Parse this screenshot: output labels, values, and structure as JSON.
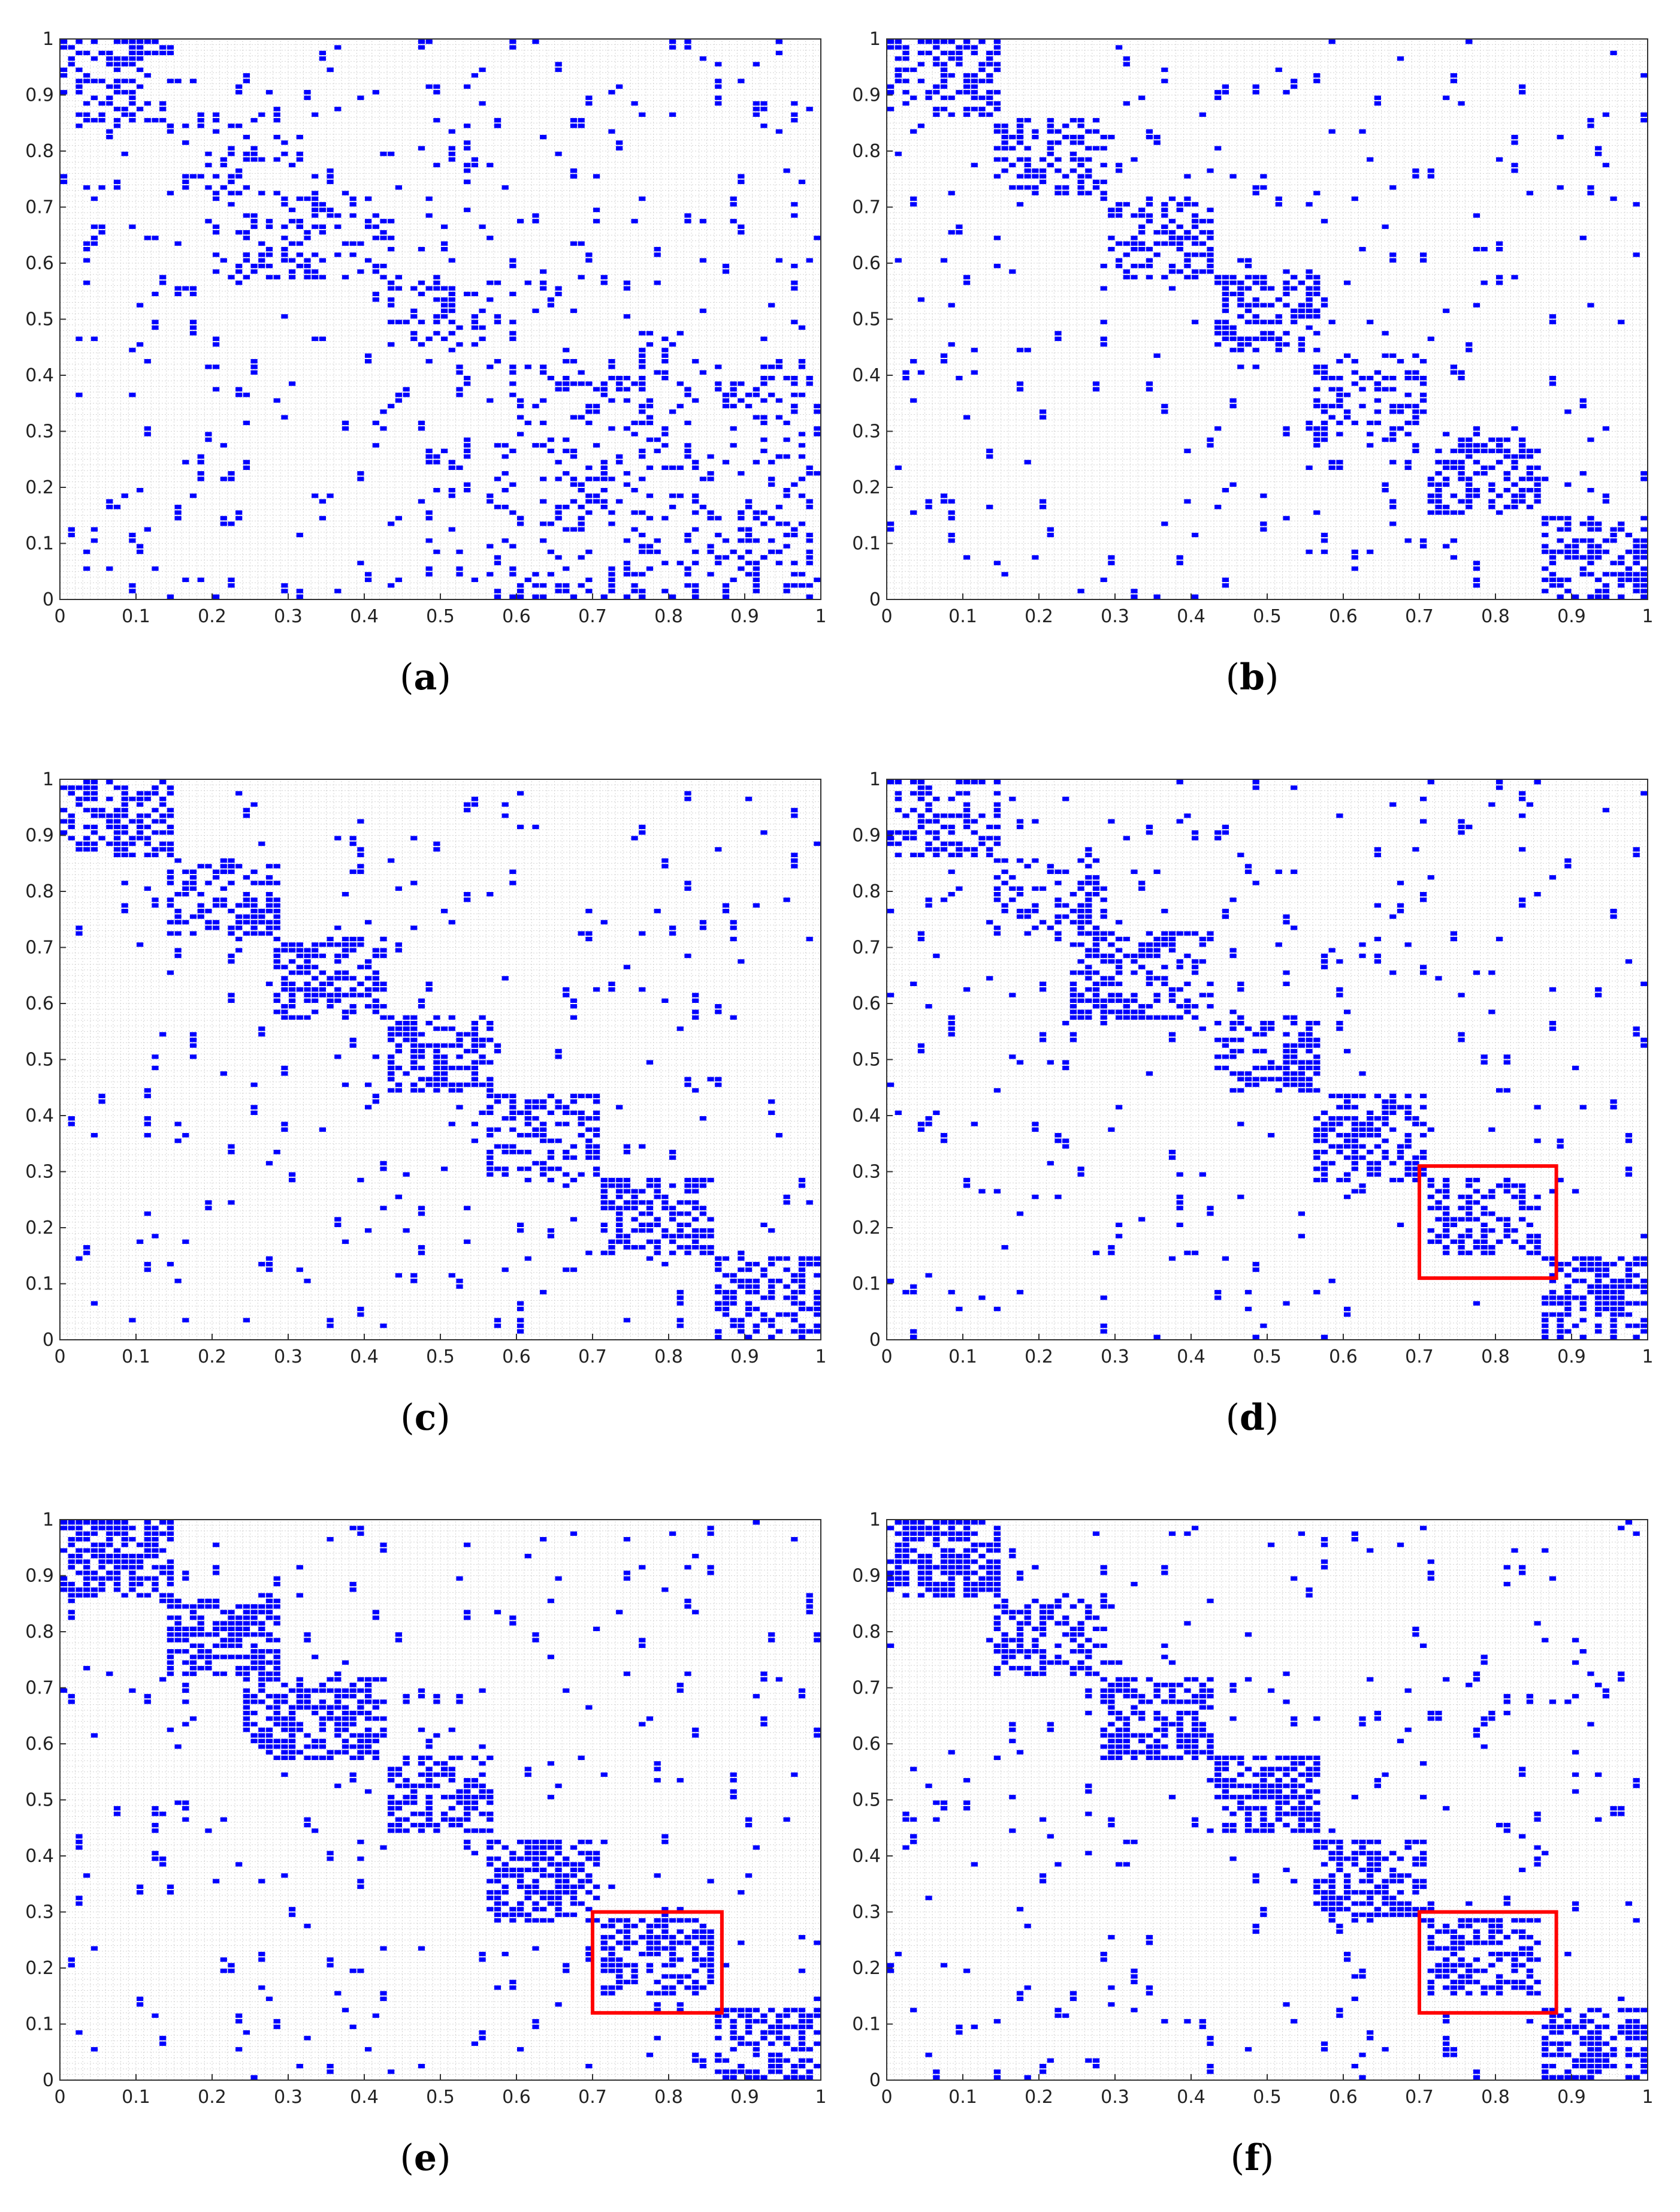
{
  "charts": [
    {
      "label": "a",
      "highlight": null,
      "chart_data": {
        "type": "scatter",
        "x_ticks": [
          "0",
          "0.1",
          "0.2",
          "0.3",
          "0.4",
          "0.5",
          "0.6",
          "0.7",
          "0.8",
          "0.9",
          "1"
        ],
        "y_ticks": [
          "0",
          "0.1",
          "0.2",
          "0.3",
          "0.4",
          "0.5",
          "0.6",
          "0.7",
          "0.8",
          "0.9",
          "1"
        ],
        "xlim": [
          0,
          1
        ],
        "ylim": [
          0,
          1
        ],
        "grid": true,
        "marker_color": "#0000ff",
        "clusters": [
          [
            0.0,
            0.15,
            0.85,
            1.0,
            0.35
          ],
          [
            0.15,
            0.3,
            0.72,
            0.87,
            0.18
          ],
          [
            0.2,
            0.43,
            0.58,
            0.73,
            0.25
          ],
          [
            0.43,
            0.57,
            0.44,
            0.58,
            0.25
          ],
          [
            0.57,
            1.0,
            0.0,
            0.43,
            0.16
          ]
        ]
      }
    },
    {
      "label": "b",
      "highlight": null,
      "chart_data": {
        "type": "scatter",
        "x_ticks": [
          "0",
          "0.1",
          "0.2",
          "0.3",
          "0.4",
          "0.5",
          "0.6",
          "0.7",
          "0.8",
          "0.9",
          "1"
        ],
        "y_ticks": [
          "0",
          "0.1",
          "0.2",
          "0.3",
          "0.4",
          "0.5",
          "0.6",
          "0.7",
          "0.8",
          "0.9",
          "1"
        ],
        "xlim": [
          0,
          1
        ],
        "ylim": [
          0,
          1
        ],
        "grid": true,
        "marker_color": "#0000ff",
        "clusters": [
          [
            0.0,
            0.14,
            0.86,
            1.0,
            0.45
          ],
          [
            0.14,
            0.28,
            0.72,
            0.86,
            0.32
          ],
          [
            0.28,
            0.43,
            0.58,
            0.72,
            0.45
          ],
          [
            0.43,
            0.57,
            0.44,
            0.58,
            0.45
          ],
          [
            0.57,
            0.71,
            0.29,
            0.44,
            0.4
          ],
          [
            0.71,
            0.86,
            0.15,
            0.29,
            0.5
          ],
          [
            0.86,
            1.0,
            0.0,
            0.14,
            0.45
          ]
        ]
      }
    },
    {
      "label": "c",
      "highlight": null,
      "chart_data": {
        "type": "scatter",
        "x_ticks": [
          "0",
          "0.1",
          "0.2",
          "0.3",
          "0.4",
          "0.5",
          "0.6",
          "0.7",
          "0.8",
          "0.9",
          "1"
        ],
        "y_ticks": [
          "0",
          "0.1",
          "0.2",
          "0.3",
          "0.4",
          "0.5",
          "0.6",
          "0.7",
          "0.8",
          "0.9",
          "1"
        ],
        "xlim": [
          0,
          1
        ],
        "ylim": [
          0,
          1
        ],
        "grid": true,
        "marker_color": "#0000ff",
        "clusters": [
          [
            0.0,
            0.14,
            0.86,
            1.0,
            0.5
          ],
          [
            0.14,
            0.28,
            0.72,
            0.86,
            0.4
          ],
          [
            0.28,
            0.43,
            0.58,
            0.72,
            0.55
          ],
          [
            0.43,
            0.57,
            0.44,
            0.58,
            0.55
          ],
          [
            0.57,
            0.71,
            0.29,
            0.44,
            0.45
          ],
          [
            0.71,
            0.86,
            0.15,
            0.29,
            0.5
          ],
          [
            0.86,
            1.0,
            0.0,
            0.14,
            0.5
          ]
        ]
      }
    },
    {
      "label": "d",
      "highlight": [
        0.7,
        0.88,
        0.11,
        0.31
      ],
      "chart_data": {
        "type": "scatter",
        "x_ticks": [
          "0",
          "0.1",
          "0.2",
          "0.3",
          "0.4",
          "0.5",
          "0.6",
          "0.7",
          "0.8",
          "0.9",
          "1"
        ],
        "y_ticks": [
          "0",
          "0.1",
          "0.2",
          "0.3",
          "0.4",
          "0.5",
          "0.6",
          "0.7",
          "0.8",
          "0.9",
          "1"
        ],
        "xlim": [
          0,
          1
        ],
        "ylim": [
          0,
          1
        ],
        "grid": true,
        "marker_color": "#0000ff",
        "clusters": [
          [
            0.0,
            0.14,
            0.86,
            1.0,
            0.45
          ],
          [
            0.14,
            0.28,
            0.72,
            0.86,
            0.35
          ],
          [
            0.24,
            0.43,
            0.58,
            0.73,
            0.45
          ],
          [
            0.43,
            0.57,
            0.44,
            0.58,
            0.45
          ],
          [
            0.57,
            0.71,
            0.29,
            0.44,
            0.45
          ],
          [
            0.71,
            0.86,
            0.15,
            0.29,
            0.45
          ],
          [
            0.86,
            1.0,
            0.0,
            0.14,
            0.55
          ]
        ]
      }
    },
    {
      "label": "e",
      "highlight": [
        0.7,
        0.87,
        0.12,
        0.3
      ],
      "chart_data": {
        "type": "scatter",
        "x_ticks": [
          "0",
          "0.1",
          "0.2",
          "0.3",
          "0.4",
          "0.5",
          "0.6",
          "0.7",
          "0.8",
          "0.9",
          "1"
        ],
        "y_ticks": [
          "0",
          "0.1",
          "0.2",
          "0.3",
          "0.4",
          "0.5",
          "0.6",
          "0.7",
          "0.8",
          "0.9",
          "1"
        ],
        "xlim": [
          0,
          1
        ],
        "ylim": [
          0,
          1
        ],
        "grid": true,
        "marker_color": "#0000ff",
        "clusters": [
          [
            0.0,
            0.14,
            0.86,
            1.0,
            0.65
          ],
          [
            0.14,
            0.28,
            0.72,
            0.86,
            0.5
          ],
          [
            0.24,
            0.43,
            0.58,
            0.72,
            0.6
          ],
          [
            0.43,
            0.57,
            0.44,
            0.58,
            0.55
          ],
          [
            0.57,
            0.71,
            0.29,
            0.43,
            0.55
          ],
          [
            0.71,
            0.86,
            0.15,
            0.29,
            0.55
          ],
          [
            0.86,
            1.0,
            0.0,
            0.13,
            0.55
          ]
        ]
      }
    },
    {
      "label": "f",
      "highlight": [
        0.7,
        0.88,
        0.12,
        0.3
      ],
      "chart_data": {
        "type": "scatter",
        "x_ticks": [
          "0",
          "0.1",
          "0.2",
          "0.3",
          "0.4",
          "0.5",
          "0.6",
          "0.7",
          "0.8",
          "0.9",
          "1"
        ],
        "y_ticks": [
          "0",
          "0.1",
          "0.2",
          "0.3",
          "0.4",
          "0.5",
          "0.6",
          "0.7",
          "0.8",
          "0.9",
          "1"
        ],
        "xlim": [
          0,
          1
        ],
        "ylim": [
          0,
          1
        ],
        "grid": true,
        "marker_color": "#0000ff",
        "clusters": [
          [
            0.0,
            0.14,
            0.86,
            1.0,
            0.65
          ],
          [
            0.14,
            0.28,
            0.72,
            0.86,
            0.5
          ],
          [
            0.28,
            0.43,
            0.58,
            0.72,
            0.6
          ],
          [
            0.43,
            0.57,
            0.44,
            0.58,
            0.55
          ],
          [
            0.57,
            0.71,
            0.29,
            0.43,
            0.55
          ],
          [
            0.71,
            0.86,
            0.15,
            0.29,
            0.55
          ],
          [
            0.86,
            1.0,
            0.0,
            0.13,
            0.55
          ]
        ]
      }
    }
  ],
  "highlight_color": "#ff0000"
}
